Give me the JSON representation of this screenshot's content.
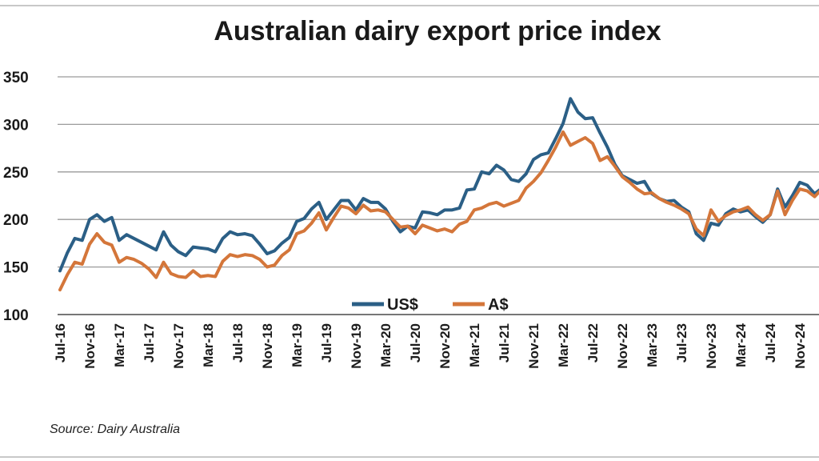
{
  "chart_data": {
    "type": "line",
    "title": "Australian dairy export price index",
    "source": "Source: Dairy Australia",
    "xlabel": "",
    "ylabel": "",
    "ylim": [
      100,
      350
    ],
    "yticks": [
      "100",
      "150",
      "200",
      "250",
      "300",
      "350"
    ],
    "xtick_labels": [
      "Jul-16",
      "Nov-16",
      "Mar-17",
      "Jul-17",
      "Nov-17",
      "Mar-18",
      "Jul-18",
      "Nov-18",
      "Mar-19",
      "Jul-19",
      "Nov-19",
      "Mar-20",
      "Jul-20",
      "Nov-20",
      "Mar-21",
      "Jul-21",
      "Nov-21",
      "Mar-22",
      "Jul-22",
      "Nov-22",
      "Mar-23",
      "Jul-23",
      "Nov-23",
      "Mar-24",
      "Jul-24",
      "Nov-24"
    ],
    "grid": true,
    "legend_position": "bottom-center",
    "x_start": "Jul-16",
    "x_step": "monthly",
    "series": [
      {
        "name": "US$",
        "color": "#2b5f86",
        "values": [
          146,
          165,
          180,
          178,
          200,
          205,
          198,
          202,
          178,
          184,
          180,
          176,
          172,
          168,
          187,
          173,
          166,
          162,
          171,
          170,
          169,
          166,
          180,
          187,
          184,
          185,
          183,
          174,
          164,
          167,
          175,
          181,
          198,
          201,
          211,
          218,
          200,
          210,
          220,
          220,
          210,
          222,
          218,
          218,
          211,
          198,
          187,
          193,
          191,
          208,
          207,
          205,
          210,
          210,
          212,
          231,
          232,
          250,
          248,
          257,
          252,
          242,
          240,
          248,
          263,
          268,
          270,
          285,
          301,
          327,
          313,
          306,
          307,
          291,
          276,
          258,
          246,
          242,
          238,
          240,
          227,
          222,
          219,
          220,
          213,
          208,
          185,
          178,
          196,
          194,
          206,
          211,
          208,
          210,
          203,
          197,
          205,
          232,
          213,
          225,
          239,
          236,
          227,
          233,
          229,
          231
        ]
      },
      {
        "name": "A$",
        "color": "#d4763a",
        "values": [
          126,
          142,
          155,
          153,
          174,
          185,
          176,
          173,
          155,
          160,
          158,
          154,
          148,
          139,
          155,
          143,
          140,
          139,
          146,
          140,
          141,
          140,
          156,
          163,
          161,
          163,
          162,
          158,
          150,
          152,
          162,
          168,
          185,
          188,
          196,
          207,
          189,
          202,
          214,
          212,
          206,
          215,
          209,
          210,
          208,
          200,
          192,
          193,
          185,
          194,
          191,
          188,
          190,
          187,
          195,
          198,
          210,
          212,
          216,
          218,
          214,
          217,
          220,
          233,
          240,
          249,
          262,
          276,
          292,
          278,
          282,
          286,
          280,
          262,
          266,
          256,
          245,
          239,
          232,
          227,
          228,
          222,
          218,
          215,
          211,
          206,
          190,
          183,
          210,
          198,
          204,
          208,
          210,
          213,
          205,
          199,
          205,
          230,
          205,
          220,
          232,
          230,
          224,
          232,
          238,
          245
        ]
      }
    ]
  }
}
